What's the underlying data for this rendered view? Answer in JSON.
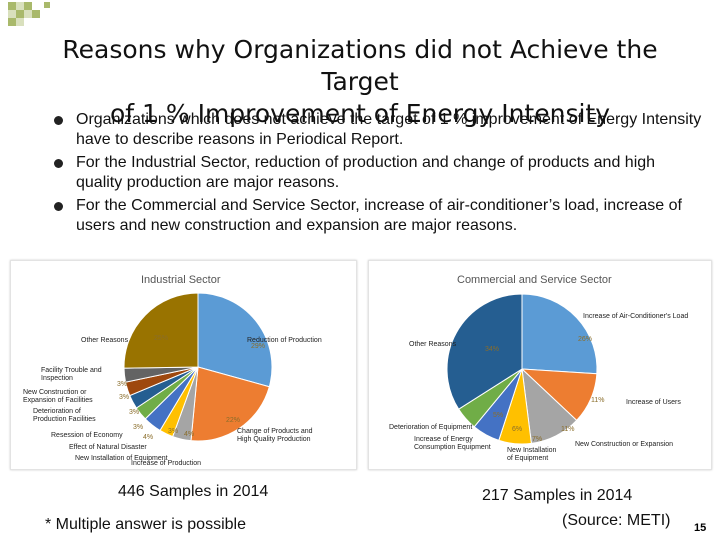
{
  "slide": {
    "title_line1": "Reasons why Organizations did not Achieve the Target",
    "title_line2": "of 1 % Improvement of Energy Intensity",
    "bullets": [
      "Organizations which does not achieve the target of 1 % improvement of Energy Intensity have to describe reasons in Periodical Report.",
      "For the Industrial Sector, reduction of production and change of products and high quality production are major reasons.",
      "For the Commercial and Service Sector, increase of air-conditioner’s load, increase of users and new construction and expansion are major reasons."
    ],
    "industrial_caption": "446 Samples in 2014",
    "commercial_caption": "217 Samples in 2014",
    "footnote": "* Multiple answer is possible",
    "source": "(Source: METI)",
    "page_number": "15"
  },
  "chart_data": [
    {
      "type": "pie",
      "title": "Industrial Sector",
      "slices": [
        {
          "label": "Reduction of Production",
          "pct_label": "29%",
          "value": 29,
          "color": "#5b9bd5"
        },
        {
          "label": "Change of Products and High Quality Production",
          "pct_label": "22%",
          "value": 22,
          "color": "#ed7d31"
        },
        {
          "label": "Increase of Production",
          "pct_label": "4%",
          "value": 4,
          "color": "#a5a5a5"
        },
        {
          "label": "New Installation of Equipment",
          "pct_label": "3%",
          "value": 3,
          "color": "#ffc000"
        },
        {
          "label": "Effect of Natural Disaster",
          "pct_label": "4%",
          "value": 4,
          "color": "#4472c4"
        },
        {
          "label": "Resession of Economy",
          "pct_label": "3%",
          "value": 3,
          "color": "#70ad47"
        },
        {
          "label": "Deterioration of Production Facilities",
          "pct_label": "3%",
          "value": 3,
          "color": "#255e91"
        },
        {
          "label": "New Construction or Expansion of Facilities",
          "pct_label": "3%",
          "value": 3,
          "color": "#9e480e"
        },
        {
          "label": "Facility Trouble and Inspection",
          "pct_label": "3%",
          "value": 3,
          "color": "#636363"
        },
        {
          "label": "Other Reasons",
          "pct_label": "25%",
          "value": 25,
          "color": "#997300"
        }
      ]
    },
    {
      "type": "pie",
      "title": "Commercial and Service Sector",
      "slices": [
        {
          "label": "Increase of Air-Conditioner's Load",
          "pct_label": "26%",
          "value": 26,
          "color": "#5b9bd5"
        },
        {
          "label": "Increase of Users",
          "pct_label": "11%",
          "value": 11,
          "color": "#ed7d31"
        },
        {
          "label": "New Construction or Expansion",
          "pct_label": "11%",
          "value": 11,
          "color": "#a5a5a5"
        },
        {
          "label": "New Installation of Equipment",
          "pct_label": "7%",
          "value": 7,
          "color": "#ffc000"
        },
        {
          "label": "Increase of Energy Consumption Equipment",
          "pct_label": "6%",
          "value": 6,
          "color": "#4472c4"
        },
        {
          "label": "Deterioration of Equipment",
          "pct_label": "5%",
          "value": 5,
          "color": "#70ad47"
        },
        {
          "label": "Other Reasons",
          "pct_label": "34%",
          "value": 34,
          "color": "#255e91"
        }
      ]
    }
  ]
}
